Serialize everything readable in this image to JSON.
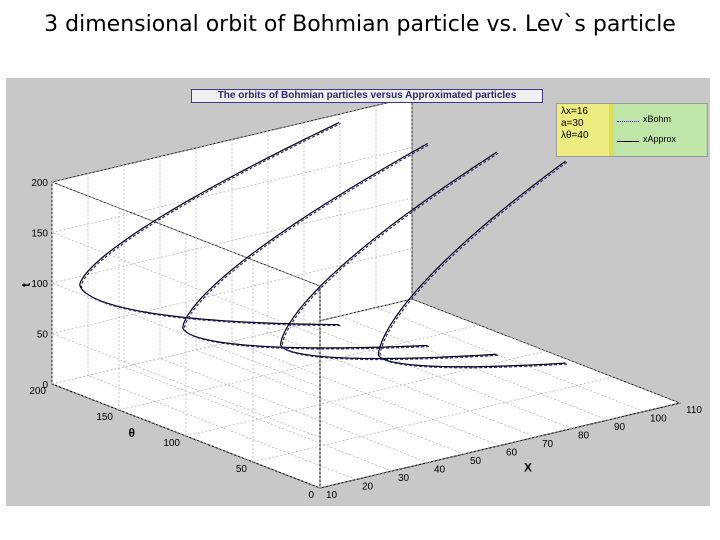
{
  "slide": {
    "title": "3 dimensional orbit of Bohmian particle vs. Lev`s particle"
  },
  "chart_data": {
    "type": "line",
    "title": "The orbits of Bohmian particles versus Approximated particles",
    "xlabel": "X",
    "ylabel": "θ",
    "zlabel": "t",
    "xlim": [
      10,
      110
    ],
    "ylim": [
      0,
      200
    ],
    "zlim": [
      0,
      200
    ],
    "x_ticks": [
      "10",
      "20",
      "30",
      "40",
      "50",
      "60",
      "70",
      "80",
      "90",
      "100",
      "110"
    ],
    "y_ticks": [
      "0",
      "50",
      "100",
      "150",
      "200"
    ],
    "z_ticks": [
      "0",
      "50",
      "100",
      "150",
      "200"
    ],
    "grid": true,
    "legend": {
      "placement": "top-right",
      "params": [
        "λx=16",
        "a=30",
        "λθ=40"
      ],
      "entries": [
        "xBohm",
        "xApprox"
      ]
    },
    "colors": {
      "bohm": "#2b2b8f",
      "approx": "#000000",
      "figure_bg": "#c8c8c8",
      "legend_bg": "#dddd55"
    },
    "series": [
      {
        "name": "xBohm",
        "style": "dotted"
      },
      {
        "name": "xApprox",
        "style": "solid"
      }
    ],
    "orbits": [
      {
        "theta": 190,
        "vertex_x": 14,
        "vertex_t": 100,
        "t_max": 200,
        "end_x_low": 86,
        "end_x_high": 86
      },
      {
        "theta": 140,
        "vertex_x": 24,
        "vertex_t": 75,
        "t_max": 200,
        "end_x_low": 92,
        "end_x_high": 92
      },
      {
        "theta": 110,
        "vertex_x": 40,
        "vertex_t": 60,
        "t_max": 200,
        "end_x_low": 100,
        "end_x_high": 100
      },
      {
        "theta": 80,
        "vertex_x": 56,
        "vertex_t": 52,
        "t_max": 200,
        "end_x_low": 108,
        "end_x_high": 108
      }
    ]
  }
}
